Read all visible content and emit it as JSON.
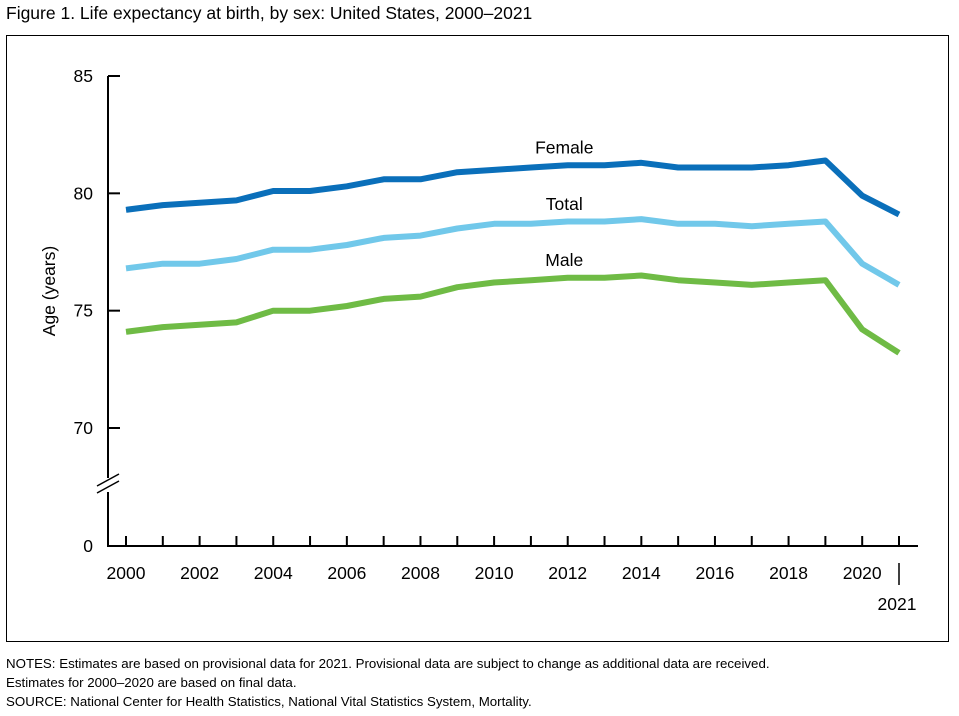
{
  "figure": {
    "title": "Figure 1. Life expectancy at birth, by sex: United States, 2000–2021"
  },
  "notes": {
    "line1": "NOTES: Estimates are based on provisional data for 2021. Provisional data are subject to change as additional data are received.",
    "line2": "Estimates for 2000–2020 are based on final data.",
    "source": "SOURCE: National Center for Health Statistics, National Vital Statistics System, Mortality."
  },
  "colors": {
    "female": "#0a6fba",
    "total": "#71c8ea",
    "male": "#6fbb45",
    "axis": "#000000"
  },
  "chart_data": {
    "type": "line",
    "title": "Figure 1. Life expectancy at birth, by sex: United States, 2000–2021",
    "xlabel": "",
    "ylabel": "Age (years)",
    "x": [
      2000,
      2001,
      2002,
      2003,
      2004,
      2005,
      2006,
      2007,
      2008,
      2009,
      2010,
      2011,
      2012,
      2013,
      2014,
      2015,
      2016,
      2017,
      2018,
      2019,
      2020,
      2021
    ],
    "xlim": [
      2000,
      2021
    ],
    "x_ticks": [
      2000,
      2002,
      2004,
      2006,
      2008,
      2010,
      2012,
      2014,
      2016,
      2018,
      2020
    ],
    "x_tick_labels": [
      "2000",
      "2002",
      "2004",
      "2006",
      "2008",
      "2010",
      "2012",
      "2014",
      "2016",
      "2018",
      "2020"
    ],
    "x_extra_label": "2021",
    "ylim": [
      70,
      85
    ],
    "y_axis_break": true,
    "y_ticks": [
      85,
      80,
      75,
      70
    ],
    "y_tick_labels": [
      "85",
      "80",
      "75",
      "70"
    ],
    "y_zero_label": "0",
    "grid": false,
    "legend": "inline labels",
    "series": [
      {
        "name": "Female",
        "color": "#0a6fba",
        "values": [
          79.3,
          79.5,
          79.6,
          79.7,
          80.1,
          80.1,
          80.3,
          80.6,
          80.6,
          80.9,
          81.0,
          81.1,
          81.2,
          81.2,
          81.3,
          81.1,
          81.1,
          81.1,
          81.2,
          81.4,
          79.9,
          79.1
        ]
      },
      {
        "name": "Total",
        "color": "#71c8ea",
        "values": [
          76.8,
          77.0,
          77.0,
          77.2,
          77.6,
          77.6,
          77.8,
          78.1,
          78.2,
          78.5,
          78.7,
          78.7,
          78.8,
          78.8,
          78.9,
          78.7,
          78.7,
          78.6,
          78.7,
          78.8,
          77.0,
          76.1
        ]
      },
      {
        "name": "Male",
        "color": "#6fbb45",
        "values": [
          74.1,
          74.3,
          74.4,
          74.5,
          75.0,
          75.0,
          75.2,
          75.5,
          75.6,
          76.0,
          76.2,
          76.3,
          76.4,
          76.4,
          76.5,
          76.3,
          76.2,
          76.1,
          76.2,
          76.3,
          74.2,
          73.2
        ]
      }
    ]
  }
}
